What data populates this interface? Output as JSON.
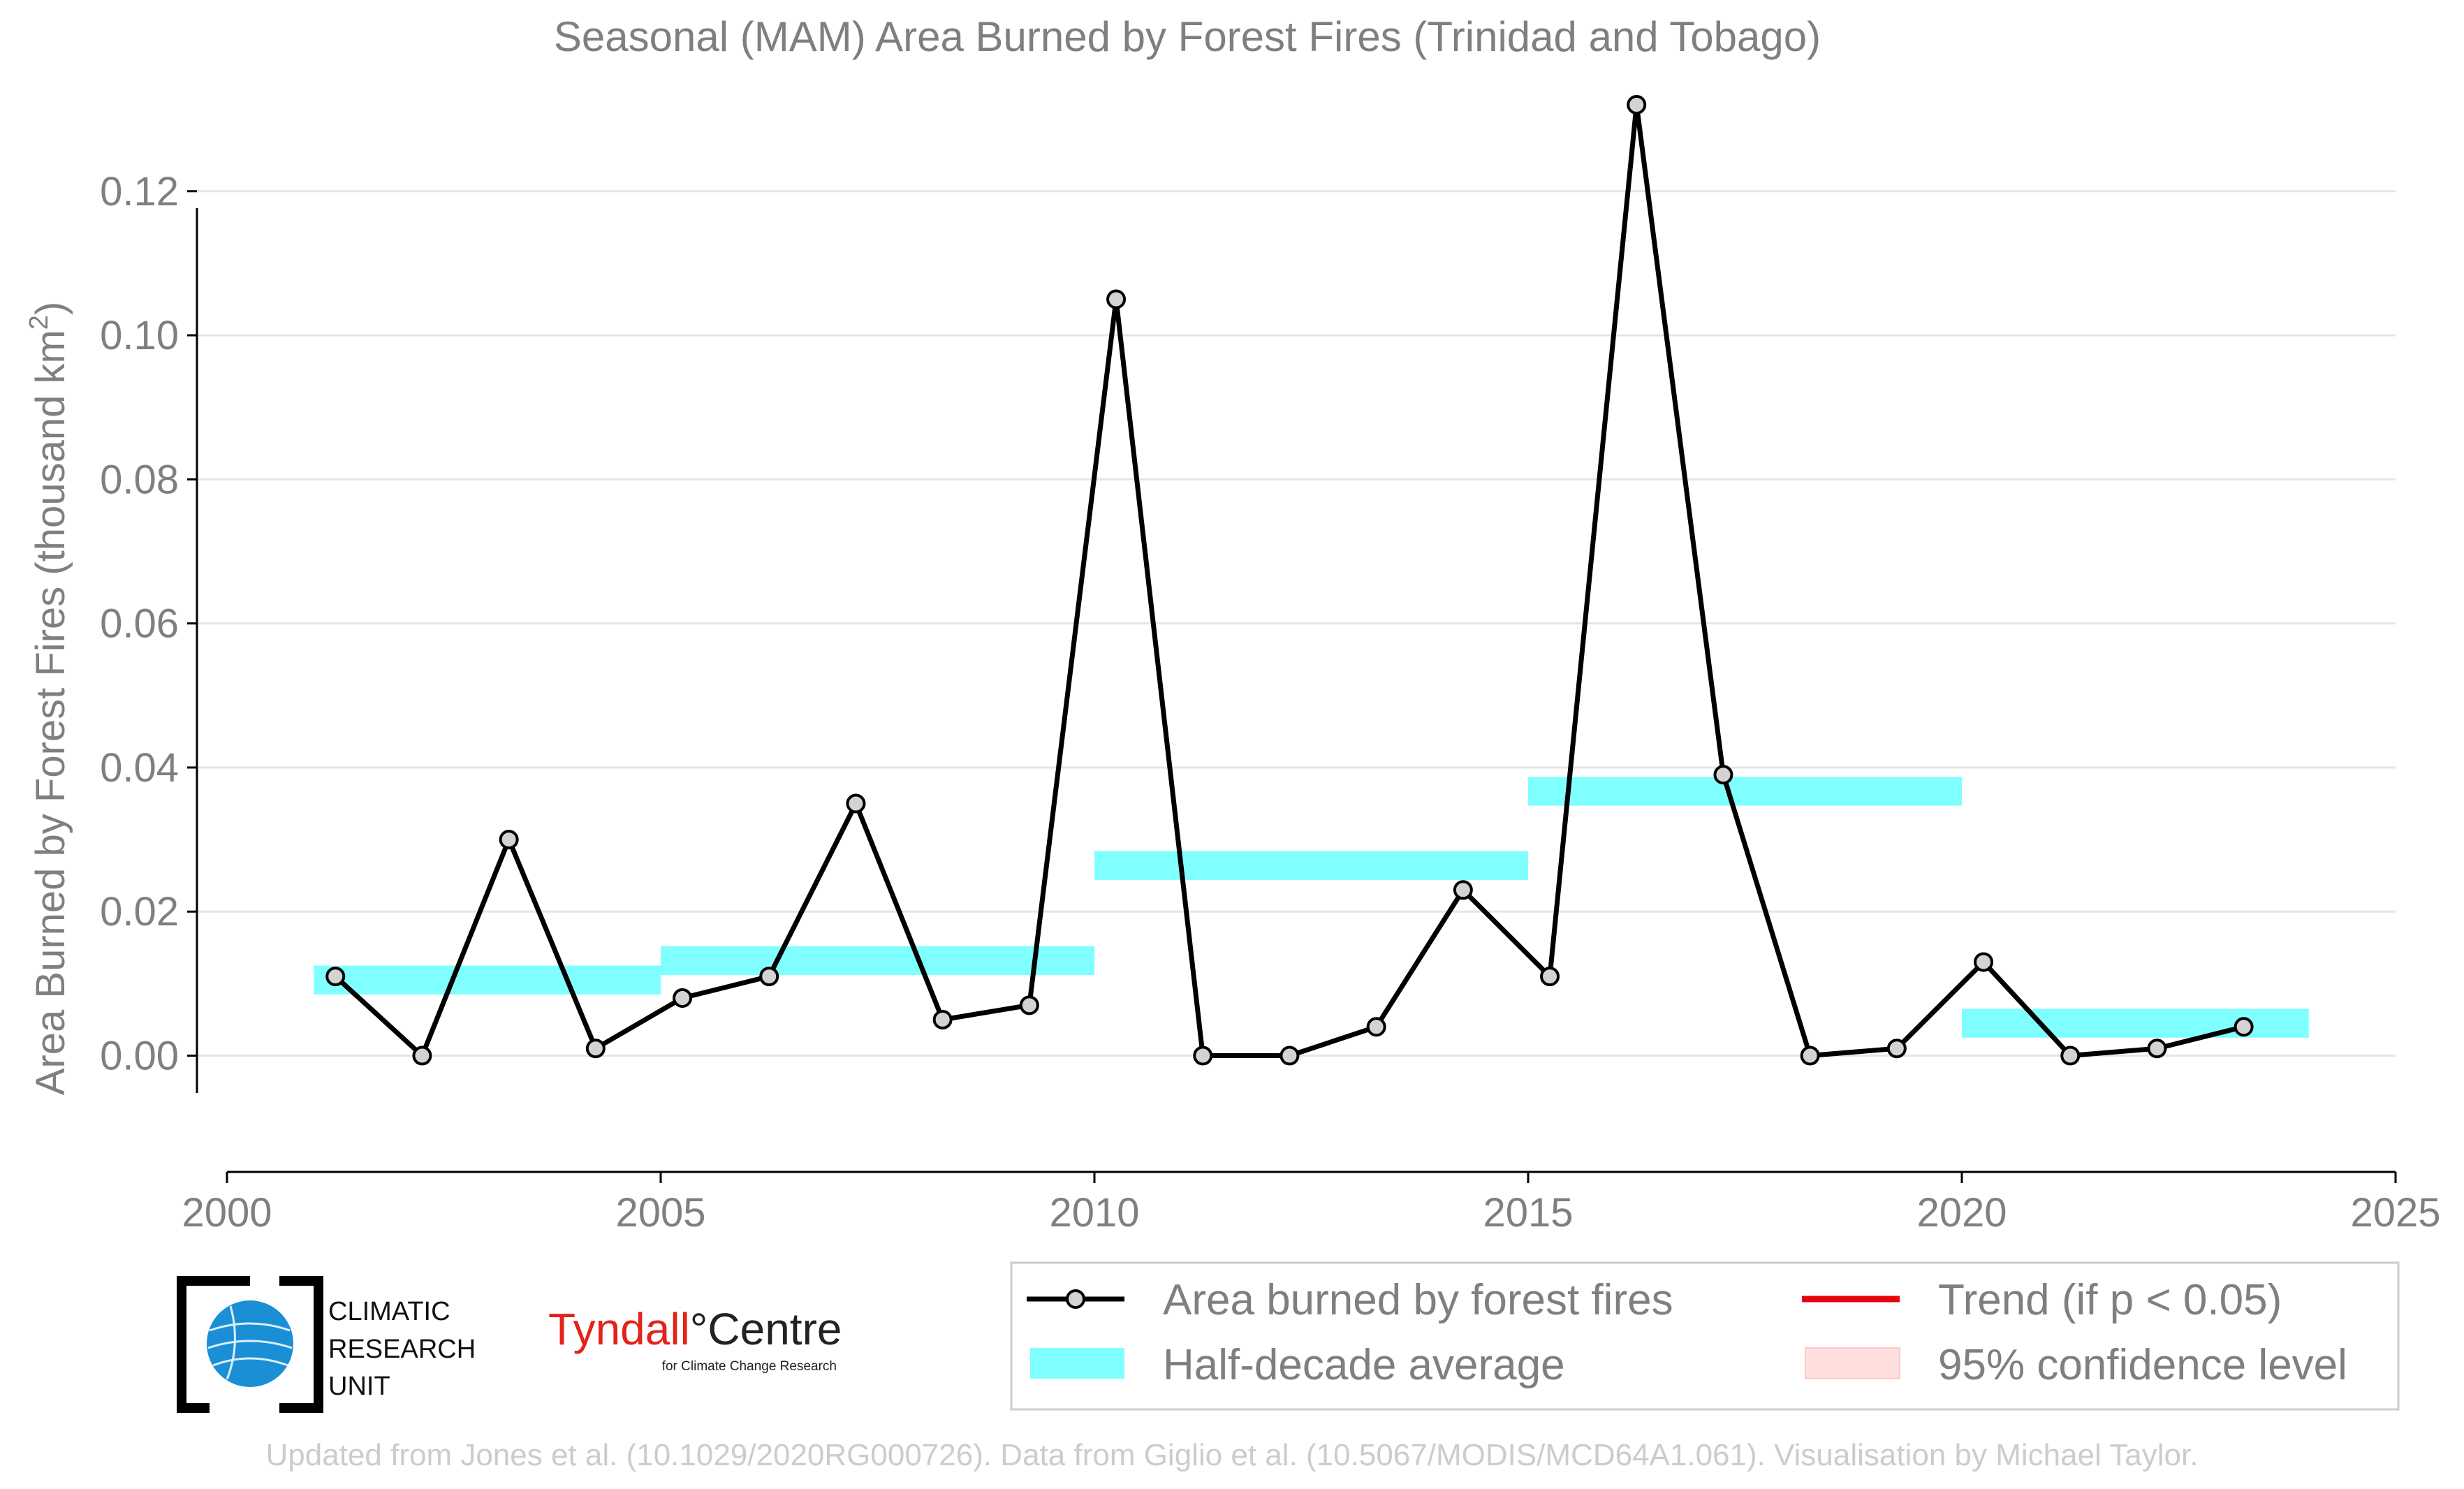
{
  "chart_data": {
    "type": "line",
    "title": "Seasonal (MAM) Area Burned by Forest Fires (Trinidad and Tobago)",
    "ylabel": "Area Burned by Forest Fires (thousand km",
    "ylabel_superscript": "2",
    "ylabel_close": ")",
    "xlim": [
      2000,
      2025
    ],
    "ylim": [
      -0.011,
      0.132
    ],
    "x_ticks": [
      "2000",
      "2005",
      "2010",
      "2015",
      "2020",
      "2025"
    ],
    "y_ticks": [
      "0.00",
      "0.02",
      "0.04",
      "0.06",
      "0.08",
      "0.10",
      "0.12"
    ],
    "grid": "horizontal",
    "legend_position": "bottom-right",
    "series": [
      {
        "name": "Area burned by forest fires",
        "color": "#000000",
        "marker_fill": "#d3d3d3",
        "x": [
          2001.25,
          2002.25,
          2003.25,
          2004.25,
          2005.25,
          2006.25,
          2007.25,
          2008.25,
          2009.25,
          2010.25,
          2011.25,
          2012.25,
          2013.25,
          2014.25,
          2015.25,
          2016.25,
          2017.25,
          2018.25,
          2019.25,
          2020.25,
          2021.25,
          2022.25,
          2023.25
        ],
        "values": [
          0.011,
          0.0,
          0.03,
          0.001,
          0.008,
          0.011,
          0.035,
          0.005,
          0.007,
          0.105,
          0.0,
          0.0,
          0.004,
          0.023,
          0.011,
          0.132,
          0.039,
          0.0,
          0.001,
          0.013,
          0.0,
          0.001,
          0.004
        ]
      },
      {
        "name": "Half-decade average",
        "color": "#7fffff",
        "segments": [
          {
            "x_start": 2001,
            "x_end": 2005,
            "value": 0.0105
          },
          {
            "x_start": 2005,
            "x_end": 2010,
            "value": 0.0132
          },
          {
            "x_start": 2010,
            "x_end": 2015,
            "value": 0.0264
          },
          {
            "x_start": 2015,
            "x_end": 2020,
            "value": 0.0367
          },
          {
            "x_start": 2020,
            "x_end": 2024,
            "value": 0.0045
          }
        ]
      }
    ],
    "legend": [
      {
        "label": "Area burned by forest fires",
        "swatch": "line-marker",
        "color": "#000000"
      },
      {
        "label": "Trend (if p < 0.05)",
        "swatch": "line",
        "color": "#e8000b"
      },
      {
        "label": "Half-decade average",
        "swatch": "box",
        "color": "#7fffff"
      },
      {
        "label": "95% confidence level",
        "swatch": "box",
        "color": "#ffdede"
      }
    ]
  },
  "logos": {
    "cru_lines": [
      "CLIMATIC",
      "RESEARCH",
      "UNIT"
    ],
    "tyndall_main": "Tyndall",
    "tyndall_degree": "°",
    "tyndall_centre": "Centre",
    "tyndall_sub": "for Climate Change Research"
  },
  "credit": "Updated from Jones et al. (10.1029/2020RG000726). Data from Giglio et al. (10.5067/MODIS/MCD64A1.061). Visualisation by Michael Taylor."
}
